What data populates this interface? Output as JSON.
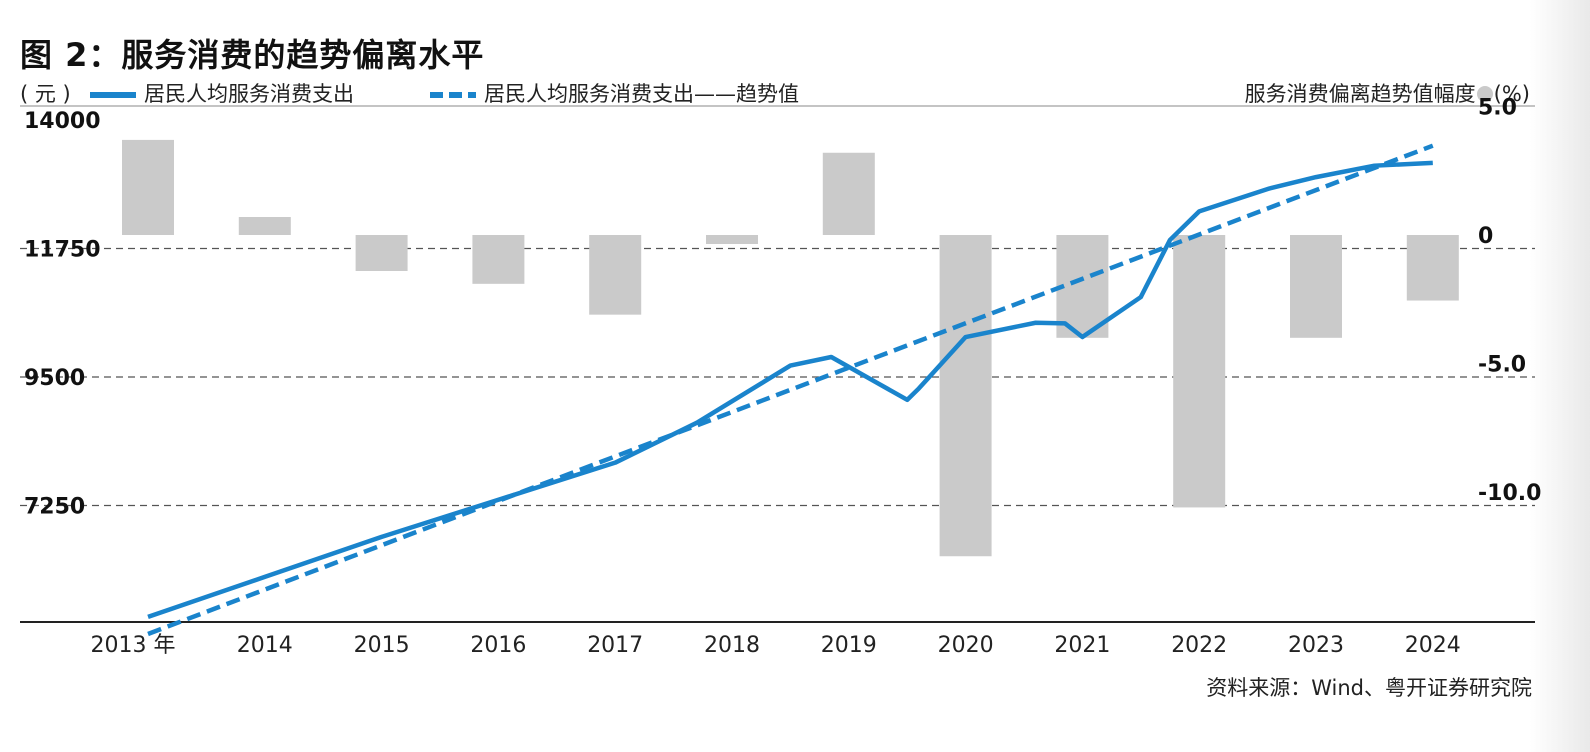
{
  "title": "图 2：服务消费的趋势偏离水平",
  "unit_left": "( 元 )",
  "legend_right_label": "服务消费偏离趋势值幅度",
  "legend_right_unit": "(%)",
  "source": "资料来源：Wind、粤开证券研究院",
  "colors": {
    "line": "#1a84cc",
    "bar": "#cacaca",
    "axis": "#222222",
    "grid": "#555555"
  },
  "chart_data": {
    "type": "bar+line",
    "categories": [
      "2013 年",
      "2014",
      "2015",
      "2016",
      "2017",
      "2018",
      "2019",
      "2020",
      "2021",
      "2022",
      "2023",
      "2024"
    ],
    "bars": {
      "name": "服务消费偏离趋势值幅度",
      "axis": "right",
      "x": [
        2013,
        2014,
        2015,
        2016,
        2017,
        2018,
        2019,
        2020,
        2021,
        2022,
        2023,
        2024
      ],
      "values": [
        3.7,
        0.7,
        -1.4,
        -1.9,
        -3.1,
        -0.35,
        3.2,
        -12.5,
        -4.0,
        -10.6,
        -4.0,
        -2.55
      ]
    },
    "series": [
      {
        "name": "居民人均服务消费支出",
        "style": "solid",
        "axis": "left",
        "x": [
          2013.0,
          2014.0,
          2015.0,
          2016.0,
          2017.0,
          2017.7,
          2018.5,
          2018.85,
          2019.5,
          2019.6,
          2020.0,
          2020.6,
          2020.85,
          2021.0,
          2021.5,
          2021.75,
          2022.0,
          2022.6,
          2023.0,
          2023.5,
          2024.0
        ],
        "values": [
          5300,
          6000,
          6700,
          7350,
          8000,
          8700,
          9700,
          9850,
          9100,
          9300,
          10200,
          10450,
          10440,
          10200,
          10900,
          11900,
          12400,
          12800,
          13000,
          13200,
          13250
        ]
      },
      {
        "name": "居民人均服务消费支出——趋势值",
        "style": "dashed",
        "axis": "left",
        "x": [
          2013.0,
          2024.0
        ],
        "values": [
          5000,
          13550
        ]
      }
    ],
    "left_axis": {
      "label": "( 元 )",
      "ticks": [
        14000,
        11750,
        9500,
        7250
      ],
      "ylim": [
        5000,
        14000
      ]
    },
    "right_axis": {
      "label": "(%)",
      "ticks": [
        "5.0",
        "0",
        "-5.0",
        "-10.0"
      ],
      "ylim": [
        -15,
        5
      ]
    },
    "grid": "dashed horizontal",
    "legend": "top"
  }
}
